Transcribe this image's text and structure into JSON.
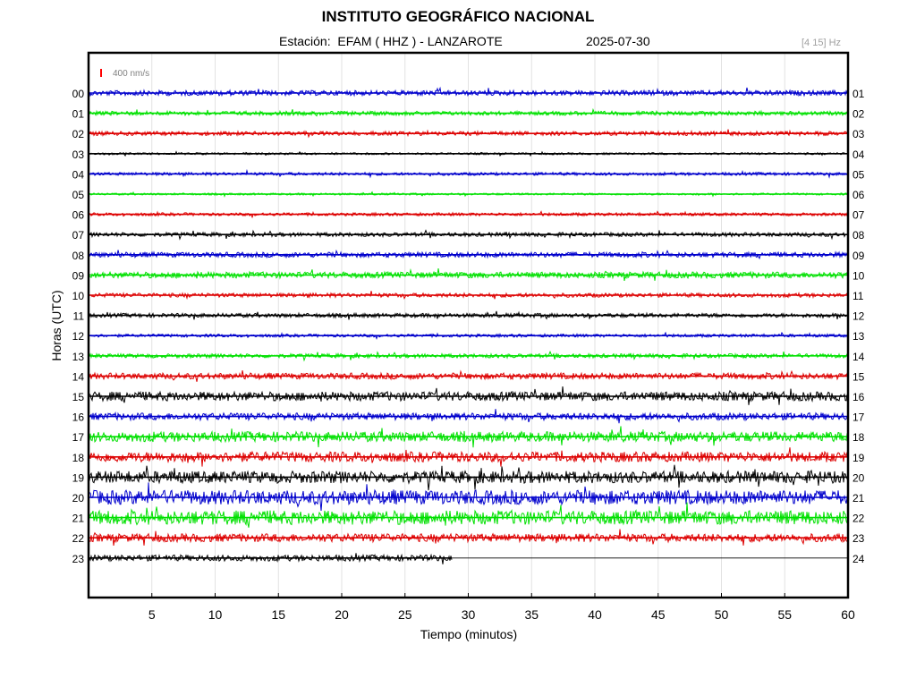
{
  "header": {
    "title": "INSTITUTO GEOGRÁFICO NACIONAL",
    "station": "Estación:  EFAM ( HHZ ) - LANZAROTE",
    "date": "2025-07-30",
    "filter": "[4 15] Hz"
  },
  "chart_data": {
    "type": "line",
    "title": "INSTITUTO GEOGRÁFICO NACIONAL",
    "xlabel": "Tiempo (minutos)",
    "ylabel": "Horas (UTC)",
    "xlim": [
      0,
      60
    ],
    "x_ticks": [
      "5",
      "10",
      "15",
      "20",
      "25",
      "30",
      "35",
      "40",
      "45",
      "50",
      "55",
      "60"
    ],
    "x_tick_values": [
      5,
      10,
      15,
      20,
      25,
      30,
      35,
      40,
      45,
      50,
      55,
      60
    ],
    "scale_label": "400 nm/s",
    "scale_color": "#ff0000",
    "grid": true,
    "colors": [
      "#0000cc",
      "#00e000",
      "#dd0000",
      "#000000"
    ],
    "series": [
      {
        "left_label": "00",
        "right_label": "01",
        "amplitude": 0.25,
        "end_minute": 60
      },
      {
        "left_label": "01",
        "right_label": "02",
        "amplitude": 0.2,
        "end_minute": 60
      },
      {
        "left_label": "02",
        "right_label": "03",
        "amplitude": 0.2,
        "end_minute": 60
      },
      {
        "left_label": "03",
        "right_label": "04",
        "amplitude": 0.1,
        "end_minute": 60
      },
      {
        "left_label": "04",
        "right_label": "05",
        "amplitude": 0.15,
        "end_minute": 60
      },
      {
        "left_label": "05",
        "right_label": "06",
        "amplitude": 0.1,
        "end_minute": 60
      },
      {
        "left_label": "06",
        "right_label": "07",
        "amplitude": 0.15,
        "end_minute": 60
      },
      {
        "left_label": "07",
        "right_label": "08",
        "amplitude": 0.2,
        "end_minute": 60
      },
      {
        "left_label": "08",
        "right_label": "09",
        "amplitude": 0.25,
        "end_minute": 60
      },
      {
        "left_label": "09",
        "right_label": "10",
        "amplitude": 0.3,
        "end_minute": 60
      },
      {
        "left_label": "10",
        "right_label": "11",
        "amplitude": 0.2,
        "end_minute": 60
      },
      {
        "left_label": "11",
        "right_label": "12",
        "amplitude": 0.2,
        "end_minute": 60
      },
      {
        "left_label": "12",
        "right_label": "13",
        "amplitude": 0.15,
        "end_minute": 60
      },
      {
        "left_label": "13",
        "right_label": "14",
        "amplitude": 0.2,
        "end_minute": 60
      },
      {
        "left_label": "14",
        "right_label": "15",
        "amplitude": 0.3,
        "end_minute": 60
      },
      {
        "left_label": "15",
        "right_label": "16",
        "amplitude": 0.45,
        "end_minute": 60
      },
      {
        "left_label": "16",
        "right_label": "17",
        "amplitude": 0.35,
        "end_minute": 60
      },
      {
        "left_label": "17",
        "right_label": "18",
        "amplitude": 0.5,
        "end_minute": 60
      },
      {
        "left_label": "18",
        "right_label": "19",
        "amplitude": 0.5,
        "end_minute": 60
      },
      {
        "left_label": "19",
        "right_label": "20",
        "amplitude": 0.6,
        "end_minute": 60
      },
      {
        "left_label": "20",
        "right_label": "21",
        "amplitude": 0.7,
        "end_minute": 60
      },
      {
        "left_label": "21",
        "right_label": "22",
        "amplitude": 0.7,
        "end_minute": 60
      },
      {
        "left_label": "22",
        "right_label": "23",
        "amplitude": 0.4,
        "end_minute": 60
      },
      {
        "left_label": "23",
        "right_label": "24",
        "amplitude": 0.3,
        "end_minute": 28.7
      }
    ]
  }
}
